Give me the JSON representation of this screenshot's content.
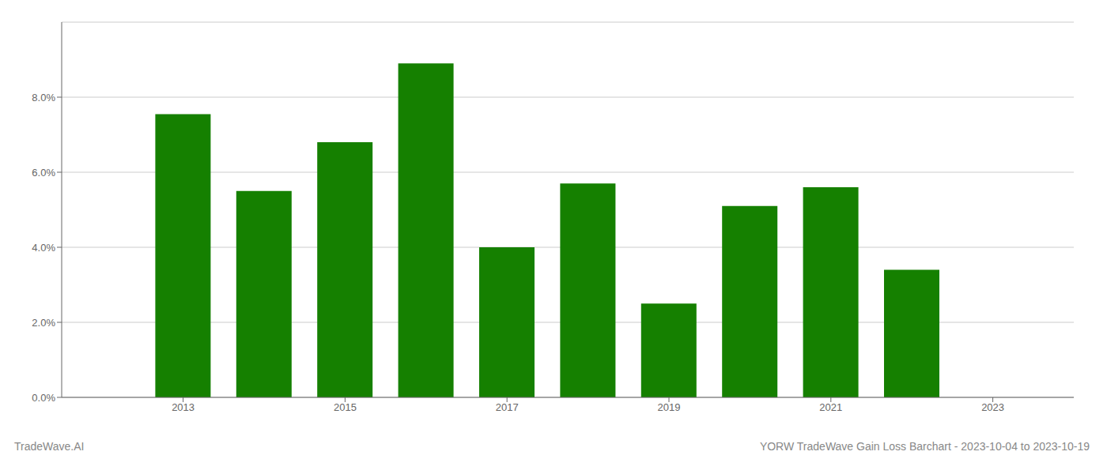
{
  "chart_data": {
    "type": "bar",
    "x": [
      2013,
      2014,
      2015,
      2016,
      2017,
      2018,
      2019,
      2020,
      2021,
      2022
    ],
    "values": [
      0.0755,
      0.055,
      0.068,
      0.089,
      0.04,
      0.057,
      0.025,
      0.051,
      0.056,
      0.034
    ],
    "color": "#158000",
    "xlim": [
      2011.5,
      2024.0
    ],
    "xticks": [
      2013,
      2015,
      2017,
      2019,
      2021,
      2023
    ],
    "ylim": [
      0,
      0.1
    ],
    "yticks": [
      {
        "value": 0.0,
        "label": "0.0%"
      },
      {
        "value": 0.02,
        "label": "2.0%"
      },
      {
        "value": 0.04,
        "label": "4.0%"
      },
      {
        "value": 0.06,
        "label": "6.0%"
      },
      {
        "value": 0.08,
        "label": "8.0%"
      }
    ],
    "grid": true,
    "annotations": [
      "TradeWave.AI",
      "YORW TradeWave Gain Loss Barchart - 2023-10-04 to 2023-10-19"
    ]
  }
}
